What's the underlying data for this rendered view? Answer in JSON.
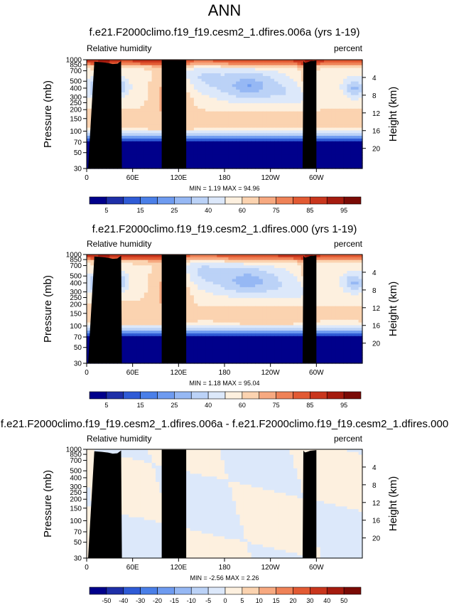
{
  "page": {
    "title": "ANN"
  },
  "panels": [
    {
      "title": "f.e21.F2000climo.f19_f19.cesm2_1.dfires.006a (yrs 1-19)",
      "left_label": "Relative humidity",
      "right_label": "percent",
      "ylabel": "Pressure (mb)",
      "ylabel_right": "Height (km)",
      "stats": "MIN =  1.19  MAX = 94.96",
      "kind": "field",
      "variant": "A"
    },
    {
      "title": "f.e21.F2000climo.f19_f19.cesm2_1.dfires.000 (yrs 1-19)",
      "left_label": "Relative humidity",
      "right_label": "percent",
      "ylabel": "Pressure (mb)",
      "ylabel_right": "Height (km)",
      "stats": "MIN =  1.18  MAX = 95.04",
      "kind": "field",
      "variant": "B"
    },
    {
      "title": "f.e21.F2000climo.f19_f19.cesm2_1.dfires.006a - f.e21.F2000climo.f19_f19.cesm2_1.dfires.000",
      "left_label": "Relative humidity",
      "right_label": "percent",
      "ylabel": "Pressure (mb)",
      "ylabel_right": "Height (km)",
      "stats": "MIN = -2.56  MAX =  2.26",
      "kind": "diff",
      "variant": "D"
    }
  ],
  "colorbars": {
    "field": {
      "levels": [
        "5",
        "10",
        "15",
        "20",
        "25",
        "30",
        "40",
        "50",
        "60",
        "70",
        "75",
        "80",
        "85",
        "90",
        "95"
      ],
      "labels_shown": [
        "5",
        "15",
        "25",
        "40",
        "60",
        "75",
        "85",
        "95"
      ],
      "colors": [
        "#00008B",
        "#1E2FA8",
        "#2F5BD6",
        "#4A7FE8",
        "#6E9BF0",
        "#96B8F4",
        "#BBD2F7",
        "#DCE8FA",
        "#FDF0DF",
        "#FBD3B0",
        "#F7A980",
        "#EF8257",
        "#E25A33",
        "#C9361D",
        "#A51B0E",
        "#7A0A05"
      ]
    },
    "diff": {
      "levels": [
        "-50",
        "-40",
        "-30",
        "-20",
        "-15",
        "-10",
        "-5",
        "0",
        "5",
        "10",
        "15",
        "20",
        "30",
        "40",
        "50"
      ],
      "labels_shown": [
        "-50",
        "-40",
        "-30",
        "-20",
        "-15",
        "-10",
        "-5",
        "0",
        "5",
        "10",
        "15",
        "20",
        "30",
        "40",
        "50"
      ],
      "colors": [
        "#00008B",
        "#1E2FA8",
        "#2F5BD6",
        "#4A7FE8",
        "#6E9BF0",
        "#96B8F4",
        "#BBD2F7",
        "#DCE8FA",
        "#FDF0DF",
        "#FBD3B0",
        "#F7A980",
        "#EF8257",
        "#E25A33",
        "#C9361D",
        "#A51B0E",
        "#7A0A05"
      ]
    }
  },
  "chart_data": [
    {
      "type": "heatmap",
      "title": "f.e21.F2000climo.f19_f19.cesm2_1.dfires.006a (yrs 1-19)",
      "xlabel": "",
      "ylabel": "Pressure (mb)",
      "ylabel_right": "Height (km)",
      "x_ticks": [
        "0",
        "60E",
        "120E",
        "180",
        "120W",
        "60W"
      ],
      "x_tick_values": [
        0,
        60,
        120,
        180,
        240,
        300
      ],
      "xlim": [
        0,
        360
      ],
      "y_ticks": [
        "30",
        "50",
        "70",
        "100",
        "150",
        "200",
        "250",
        "300",
        "400",
        "500",
        "700",
        "850",
        "1000"
      ],
      "y_tick_values": [
        30,
        50,
        70,
        100,
        150,
        200,
        250,
        300,
        400,
        500,
        700,
        850,
        1000
      ],
      "ylim": [
        1000,
        30
      ],
      "y_scale": "log",
      "right_ticks": [
        "20",
        "16",
        "12",
        "8",
        "4"
      ],
      "right_tick_values": [
        20,
        16,
        12,
        8,
        4
      ],
      "min": 1.19,
      "max": 94.96,
      "units": "percent"
    },
    {
      "type": "heatmap",
      "title": "f.e21.F2000climo.f19_f19.cesm2_1.dfires.000 (yrs 1-19)",
      "xlabel": "",
      "ylabel": "Pressure (mb)",
      "ylabel_right": "Height (km)",
      "x_ticks": [
        "0",
        "60E",
        "120E",
        "180",
        "120W",
        "60W"
      ],
      "x_tick_values": [
        0,
        60,
        120,
        180,
        240,
        300
      ],
      "xlim": [
        0,
        360
      ],
      "y_ticks": [
        "30",
        "50",
        "70",
        "100",
        "150",
        "200",
        "250",
        "300",
        "400",
        "500",
        "700",
        "850",
        "1000"
      ],
      "y_tick_values": [
        30,
        50,
        70,
        100,
        150,
        200,
        250,
        300,
        400,
        500,
        700,
        850,
        1000
      ],
      "ylim": [
        1000,
        30
      ],
      "y_scale": "log",
      "right_ticks": [
        "20",
        "16",
        "12",
        "8",
        "4"
      ],
      "right_tick_values": [
        20,
        16,
        12,
        8,
        4
      ],
      "min": 1.18,
      "max": 95.04,
      "units": "percent"
    },
    {
      "type": "heatmap",
      "title": "f.e21.F2000climo.f19_f19.cesm2_1.dfires.006a - f.e21.F2000climo.f19_f19.cesm2_1.dfires.000",
      "xlabel": "",
      "ylabel": "Pressure (mb)",
      "ylabel_right": "Height (km)",
      "x_ticks": [
        "0",
        "60E",
        "120E",
        "180",
        "120W",
        "60W"
      ],
      "x_tick_values": [
        0,
        60,
        120,
        180,
        240,
        300
      ],
      "xlim": [
        0,
        360
      ],
      "y_ticks": [
        "30",
        "50",
        "70",
        "100",
        "150",
        "200",
        "250",
        "300",
        "400",
        "500",
        "700",
        "850",
        "1000"
      ],
      "y_tick_values": [
        30,
        50,
        70,
        100,
        150,
        200,
        250,
        300,
        400,
        500,
        700,
        850,
        1000
      ],
      "ylim": [
        1000,
        30
      ],
      "y_scale": "log",
      "right_ticks": [
        "20",
        "16",
        "12",
        "8",
        "4"
      ],
      "right_tick_values": [
        20,
        16,
        12,
        8,
        4
      ],
      "min": -2.56,
      "max": 2.26,
      "units": "percent"
    }
  ]
}
